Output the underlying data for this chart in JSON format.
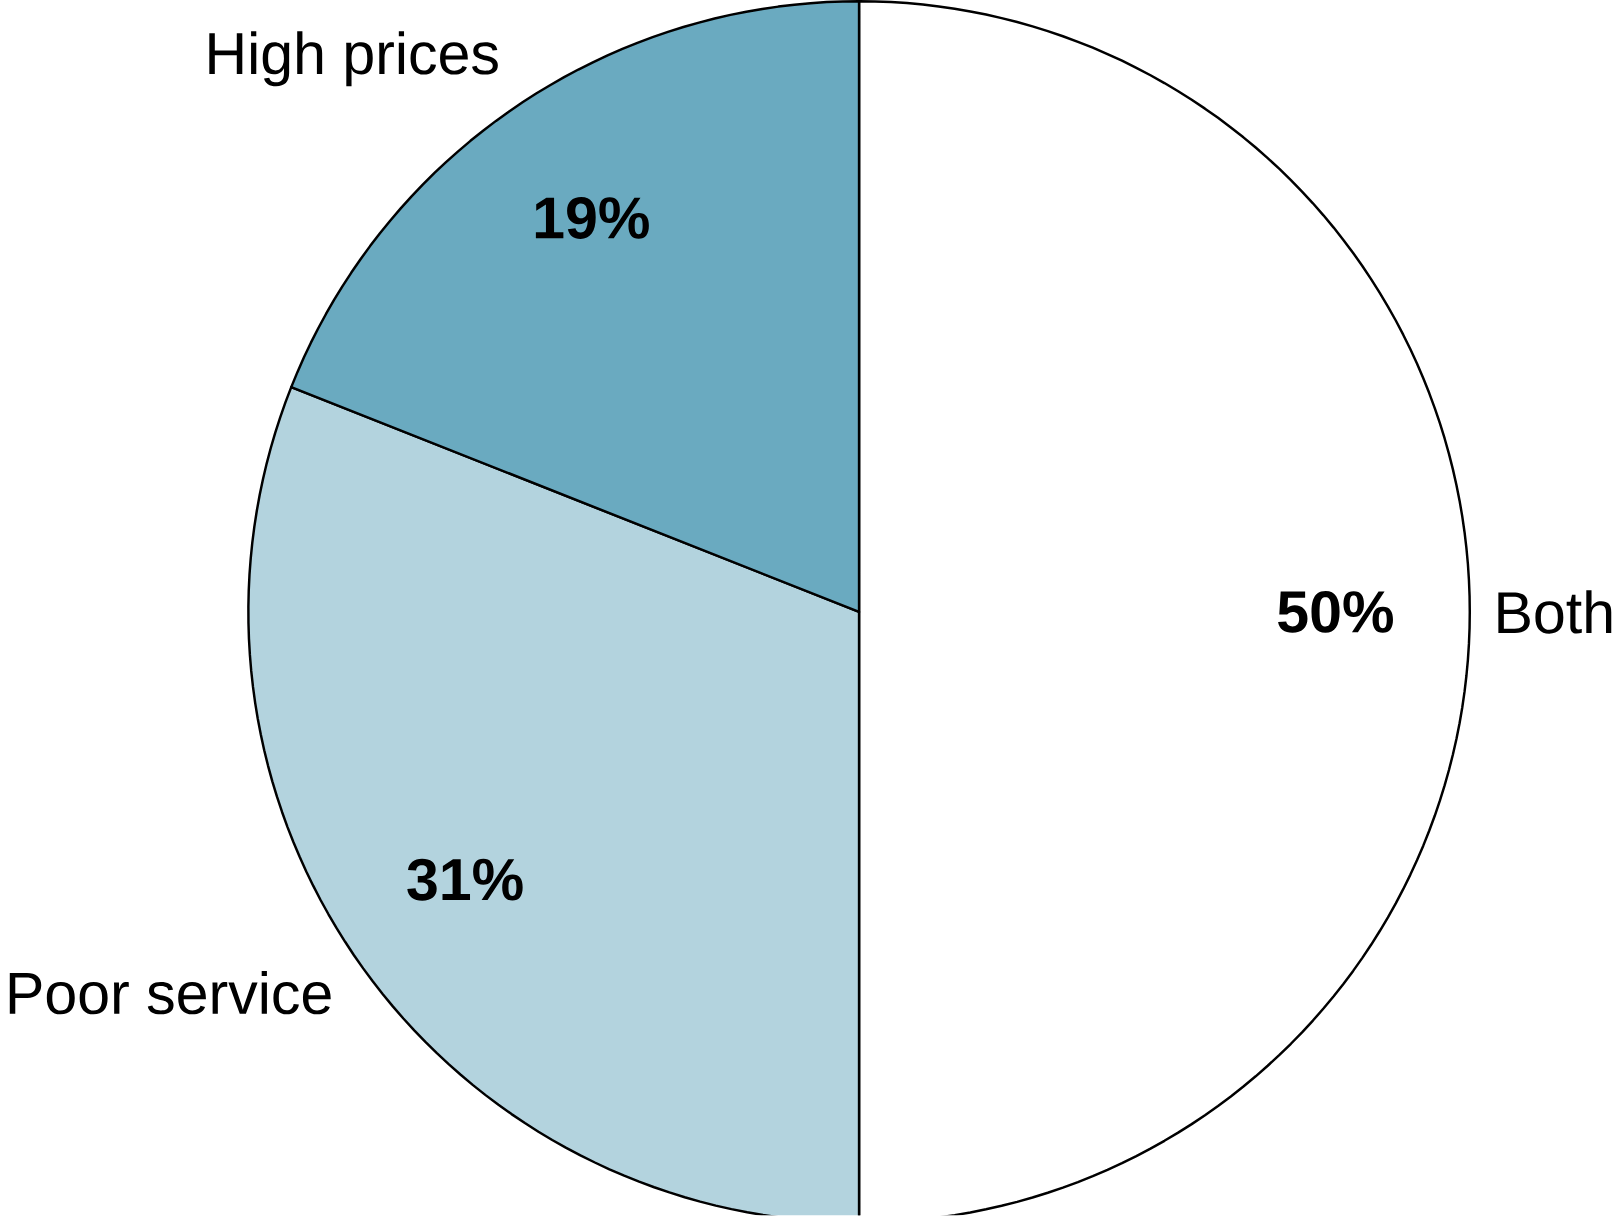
{
  "chart_data": {
    "type": "pie",
    "categories": [
      "Both",
      "Poor service",
      "High prices"
    ],
    "values": [
      50,
      31,
      19
    ],
    "colors": [
      "#ffffff",
      "#b3d3de",
      "#6aaac0"
    ],
    "value_labels": [
      "50%",
      "31%",
      "19%"
    ]
  }
}
